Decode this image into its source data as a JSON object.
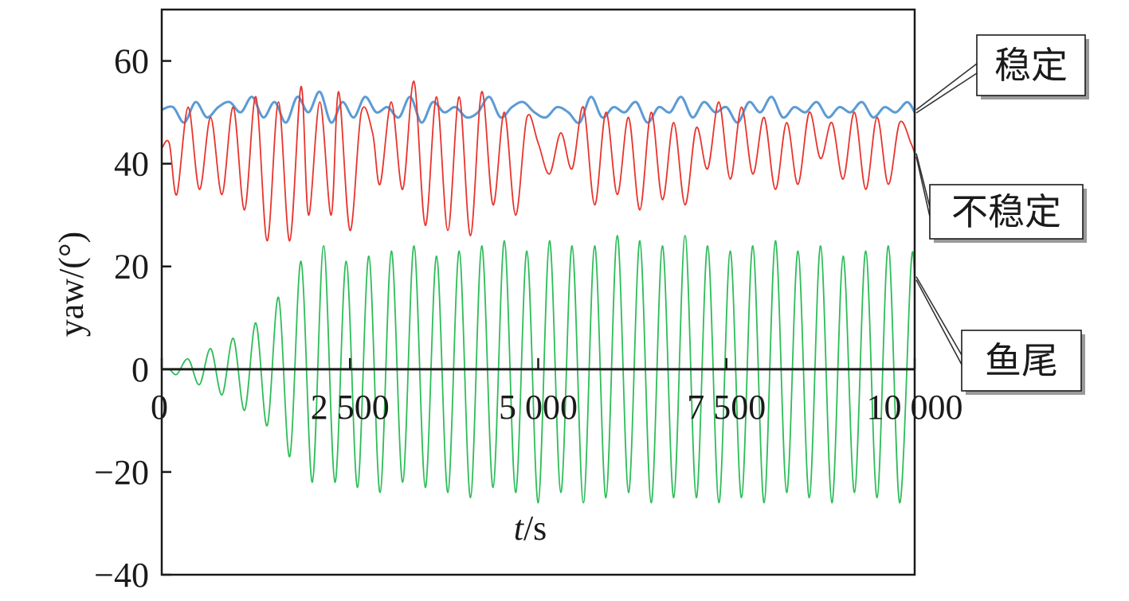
{
  "chart_data": {
    "type": "line",
    "title": "",
    "xlabel_italic": "t",
    "xlabel_unit": "/s",
    "ylabel": "yaw/(°)",
    "xlim": [
      0,
      10000
    ],
    "ylim": [
      -40,
      70
    ],
    "x_ticks": [
      0,
      2500,
      5000,
      7500,
      10000
    ],
    "x_tick_labels": [
      "0",
      "2 500",
      "5 000",
      "7 500",
      "10 000"
    ],
    "y_ticks": [
      -40,
      -20,
      0,
      20,
      40,
      60
    ],
    "y_tick_labels": [
      "−40",
      "−20",
      "0",
      "20",
      "40",
      "60"
    ],
    "grid": false,
    "legend_position": "right-outside",
    "series": [
      {
        "name": "稳定",
        "color": "#5b9bd5",
        "x": [
          0,
          150,
          300,
          450,
          600,
          750,
          900,
          1050,
          1200,
          1350,
          1500,
          1650,
          1800,
          1950,
          2100,
          2250,
          2400,
          2550,
          2700,
          2850,
          3000,
          3150,
          3300,
          3450,
          3600,
          3750,
          3900,
          4050,
          4200,
          4350,
          4500,
          4650,
          4800,
          4950,
          5100,
          5250,
          5400,
          5550,
          5700,
          5850,
          6000,
          6150,
          6300,
          6450,
          6600,
          6750,
          6900,
          7050,
          7200,
          7350,
          7500,
          7650,
          7800,
          7950,
          8100,
          8250,
          8400,
          8550,
          8700,
          8850,
          9000,
          9150,
          9300,
          9450,
          9600,
          9750,
          9900,
          10000
        ],
        "values": [
          50.5,
          51,
          48,
          52,
          49,
          51,
          52,
          50,
          53,
          49,
          52,
          48,
          53,
          50,
          54,
          48,
          52,
          49,
          53,
          50,
          51,
          49,
          53,
          48,
          52,
          50,
          51,
          49,
          50,
          53,
          49,
          51,
          52,
          50,
          49,
          51,
          50,
          48,
          53,
          49,
          51,
          50,
          52,
          48,
          51,
          50,
          53,
          49,
          52,
          50,
          51,
          48,
          52,
          50,
          53,
          49,
          51,
          50,
          52,
          49,
          51,
          50,
          52,
          49,
          51,
          50,
          52,
          50
        ]
      },
      {
        "name": "不稳定",
        "color": "#e8352e",
        "x": [
          0,
          100,
          200,
          350,
          500,
          650,
          800,
          950,
          1100,
          1250,
          1400,
          1550,
          1700,
          1850,
          1950,
          2100,
          2250,
          2350,
          2500,
          2650,
          2800,
          2900,
          3050,
          3200,
          3350,
          3500,
          3650,
          3800,
          3950,
          4100,
          4250,
          4400,
          4550,
          4700,
          4850,
          5000,
          5150,
          5300,
          5450,
          5600,
          5750,
          5900,
          6050,
          6200,
          6350,
          6500,
          6650,
          6800,
          6950,
          7100,
          7250,
          7400,
          7550,
          7700,
          7850,
          8000,
          8150,
          8300,
          8450,
          8600,
          8750,
          8900,
          9050,
          9200,
          9350,
          9500,
          9650,
          9800,
          9950,
          10000
        ],
        "values": [
          43,
          44,
          34,
          51,
          35,
          49,
          34,
          51,
          31,
          53,
          25,
          52,
          25,
          55,
          30,
          52,
          30,
          54,
          27,
          50,
          46,
          36,
          52,
          35,
          56,
          28,
          53,
          27,
          53,
          26,
          54,
          32,
          50,
          30,
          49,
          44,
          38,
          46,
          39,
          51,
          32,
          50,
          34,
          49,
          31,
          50,
          33,
          48,
          32,
          47,
          39,
          52,
          37,
          51,
          38,
          49,
          35,
          48,
          36,
          50,
          41,
          48,
          37,
          50,
          35,
          49,
          36,
          48,
          44,
          42
        ]
      },
      {
        "name": "鱼尾",
        "color": "#2ebd59",
        "x": [
          0,
          100,
          200,
          350,
          500,
          650,
          800,
          950,
          1100,
          1250,
          1400,
          1550,
          1700,
          1850,
          2000,
          2150,
          2300,
          2450,
          2600,
          2750,
          2900,
          3050,
          3200,
          3350,
          3500,
          3650,
          3800,
          3950,
          4100,
          4250,
          4400,
          4550,
          4700,
          4850,
          5000,
          5150,
          5300,
          5450,
          5600,
          5750,
          5900,
          6050,
          6200,
          6350,
          6500,
          6650,
          6800,
          6950,
          7100,
          7250,
          7400,
          7550,
          7700,
          7850,
          8000,
          8150,
          8300,
          8450,
          8600,
          8750,
          8900,
          9050,
          9200,
          9350,
          9500,
          9650,
          9800,
          9950,
          10000
        ],
        "values": [
          0,
          0,
          -1,
          2,
          -3,
          4,
          -5,
          6,
          -8,
          9,
          -11,
          14,
          -17,
          21,
          -22,
          24,
          -22,
          21,
          -23,
          22,
          -24,
          23,
          -22,
          24,
          -23,
          22,
          -24,
          23,
          -25,
          24,
          -23,
          25,
          -24,
          23,
          -26,
          25,
          -24,
          24,
          -26,
          24,
          -25,
          26,
          -24,
          25,
          -26,
          24,
          -25,
          26,
          -25,
          24,
          -26,
          23,
          -25,
          24,
          -26,
          25,
          -24,
          23,
          -25,
          24,
          -26,
          22,
          -24,
          23,
          -25,
          24,
          -26,
          20,
          18
        ]
      }
    ]
  }
}
